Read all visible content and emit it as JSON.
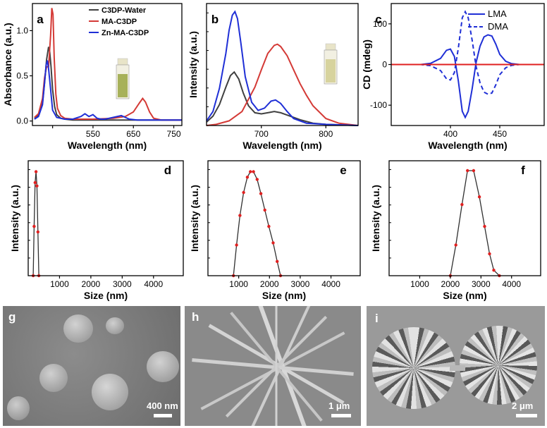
{
  "chart_data": [
    {
      "panel": "a",
      "type": "line",
      "xlabel": "Wavelength (nm)",
      "ylabel": "Absorbance (a.u.)",
      "xlim": [
        400,
        770
      ],
      "ylim": [
        -0.05,
        1.3
      ],
      "xticks": [
        450,
        550,
        650,
        750
      ],
      "xtick_labels": [
        "",
        "550",
        "650",
        "750"
      ],
      "yticks": [
        0.0,
        0.5,
        1.0
      ],
      "ytick_labels": [
        "0.0",
        "0.5",
        "1.0"
      ],
      "legend_position": "top-right",
      "series": [
        {
          "name": "C3DP-Water",
          "color": "#404040",
          "x": [
            405,
            415,
            425,
            430,
            435,
            440,
            443,
            446,
            450,
            455,
            460,
            470,
            480,
            500,
            550,
            600,
            650,
            700,
            770
          ],
          "y": [
            0.03,
            0.06,
            0.2,
            0.42,
            0.68,
            0.82,
            0.76,
            0.6,
            0.35,
            0.16,
            0.07,
            0.03,
            0.02,
            0.01,
            0.01,
            0.01,
            0.01,
            0.01,
            0.01
          ]
        },
        {
          "name": "MA-C3DP",
          "color": "#d43a36",
          "x": [
            405,
            415,
            425,
            430,
            435,
            440,
            445,
            448,
            451,
            454,
            458,
            462,
            470,
            480,
            500,
            550,
            600,
            630,
            650,
            665,
            673,
            680,
            690,
            700,
            720,
            770
          ],
          "y": [
            0.04,
            0.08,
            0.25,
            0.48,
            0.6,
            0.6,
            0.95,
            1.25,
            1.18,
            0.7,
            0.3,
            0.14,
            0.06,
            0.03,
            0.02,
            0.02,
            0.03,
            0.05,
            0.1,
            0.2,
            0.25,
            0.21,
            0.1,
            0.03,
            0.01,
            0.01
          ]
        },
        {
          "name": "Zn-MA-C3DP",
          "color": "#1f2fd6",
          "x": [
            405,
            415,
            425,
            430,
            434,
            437,
            440,
            445,
            450,
            460,
            480,
            500,
            520,
            530,
            540,
            550,
            560,
            570,
            580,
            590,
            600,
            620,
            630,
            640,
            660,
            700,
            770
          ],
          "y": [
            0.02,
            0.05,
            0.18,
            0.42,
            0.62,
            0.67,
            0.58,
            0.35,
            0.12,
            0.04,
            0.02,
            0.02,
            0.05,
            0.08,
            0.05,
            0.07,
            0.03,
            0.02,
            0.02,
            0.03,
            0.04,
            0.06,
            0.04,
            0.02,
            0.01,
            0.01,
            0.01
          ]
        }
      ]
    },
    {
      "panel": "b",
      "type": "line",
      "xlabel": "Wavelength (nm)",
      "ylabel": "Intensity (a.u.)",
      "xlim": [
        615,
        850
      ],
      "ylim": [
        0,
        1.05
      ],
      "xticks": [
        700,
        800
      ],
      "xtick_labels": [
        "700",
        "800"
      ],
      "series": [
        {
          "color": "#404040",
          "x": [
            615,
            625,
            635,
            645,
            652,
            658,
            665,
            672,
            680,
            690,
            700,
            710,
            720,
            730,
            740,
            750,
            760,
            780,
            800,
            850
          ],
          "y": [
            0.03,
            0.08,
            0.18,
            0.33,
            0.43,
            0.46,
            0.4,
            0.28,
            0.17,
            0.11,
            0.1,
            0.11,
            0.12,
            0.11,
            0.09,
            0.07,
            0.05,
            0.02,
            0.01,
            0.0
          ]
        },
        {
          "color": "#d43a36",
          "x": [
            615,
            630,
            650,
            670,
            690,
            700,
            710,
            720,
            725,
            730,
            740,
            750,
            760,
            770,
            780,
            800,
            820,
            850
          ],
          "y": [
            0.0,
            0.01,
            0.04,
            0.12,
            0.33,
            0.48,
            0.62,
            0.69,
            0.7,
            0.68,
            0.6,
            0.48,
            0.36,
            0.26,
            0.17,
            0.06,
            0.02,
            0.0
          ]
        },
        {
          "color": "#1f2fd6",
          "x": [
            615,
            625,
            635,
            645,
            650,
            655,
            659,
            663,
            668,
            675,
            685,
            695,
            705,
            715,
            722,
            730,
            740,
            750,
            770,
            800,
            850
          ],
          "y": [
            0.04,
            0.12,
            0.32,
            0.62,
            0.82,
            0.95,
            0.98,
            0.92,
            0.72,
            0.42,
            0.2,
            0.13,
            0.15,
            0.21,
            0.22,
            0.19,
            0.12,
            0.06,
            0.02,
            0.01,
            0.0
          ]
        }
      ]
    },
    {
      "panel": "c",
      "type": "line",
      "xlabel": "Wavelength (nm)",
      "ylabel": "CD (mdeg)",
      "xlim": [
        340,
        495
      ],
      "ylim": [
        -150,
        150
      ],
      "xticks": [
        400,
        450
      ],
      "xtick_labels": [
        "400",
        "450"
      ],
      "yticks": [
        -100,
        0,
        100
      ],
      "ytick_labels": [
        "-100",
        "0",
        "100"
      ],
      "legend_position": "top-right",
      "series": [
        {
          "name": "LMA",
          "color": "#1f2fd6",
          "dash": "solid",
          "x": [
            340,
            370,
            380,
            390,
            396,
            400,
            404,
            408,
            412,
            415,
            418,
            422,
            426,
            430,
            434,
            438,
            442,
            446,
            450,
            456,
            462,
            470,
            480,
            495
          ],
          "y": [
            0,
            0,
            3,
            15,
            35,
            38,
            20,
            -40,
            -115,
            -130,
            -115,
            -60,
            5,
            45,
            68,
            73,
            70,
            50,
            25,
            8,
            2,
            0,
            0,
            0
          ]
        },
        {
          "name": "DMA",
          "color": "#1f2fd6",
          "dash": "dashed",
          "x": [
            340,
            370,
            380,
            390,
            396,
            400,
            404,
            408,
            412,
            415,
            418,
            422,
            426,
            430,
            434,
            438,
            442,
            446,
            450,
            456,
            462,
            470,
            480,
            495
          ],
          "y": [
            0,
            0,
            -3,
            -15,
            -35,
            -38,
            -20,
            40,
            115,
            130,
            115,
            60,
            -5,
            -45,
            -68,
            -73,
            -70,
            -50,
            -25,
            -8,
            -2,
            0,
            0,
            0
          ]
        },
        {
          "color": "#e02020",
          "dash": "solid",
          "x": [
            340,
            495
          ],
          "y": [
            0,
            0
          ]
        }
      ]
    },
    {
      "panel": "d",
      "type": "line",
      "xlabel": "Size (nm)",
      "ylabel": "Intensity (a.u.)",
      "xlim": [
        0,
        4950
      ],
      "ylim": [
        0,
        1.05
      ],
      "xticks": [
        1000,
        2000,
        3000,
        4000
      ],
      "xtick_labels": [
        "1000",
        "2000",
        "3000",
        "4000"
      ],
      "series": [
        {
          "color": "#303030",
          "marker_color": "#e02020",
          "x": [
            160,
            190,
            220,
            250,
            280,
            310,
            340
          ],
          "y": [
            0.0,
            0.45,
            0.85,
            0.95,
            0.82,
            0.4,
            0.0
          ]
        }
      ]
    },
    {
      "panel": "e",
      "type": "line",
      "xlabel": "Size (nm)",
      "ylabel": "Intensity (a.u.)",
      "xlim": [
        0,
        4950
      ],
      "ylim": [
        0,
        1.05
      ],
      "xticks": [
        1000,
        2000,
        3000,
        4000
      ],
      "xtick_labels": [
        "1000",
        "2000",
        "3000",
        "4000"
      ],
      "series": [
        {
          "color": "#303030",
          "marker_color": "#e02020",
          "x": [
            830,
            930,
            1040,
            1160,
            1280,
            1380,
            1480,
            1600,
            1720,
            1850,
            1980,
            2120,
            2250,
            2360
          ],
          "y": [
            0.0,
            0.28,
            0.55,
            0.76,
            0.9,
            0.95,
            0.95,
            0.88,
            0.75,
            0.6,
            0.45,
            0.3,
            0.13,
            0.0
          ]
        }
      ]
    },
    {
      "panel": "f",
      "type": "line",
      "xlabel": "Size (nm)",
      "ylabel": "Intensity (a.u.)",
      "xlim": [
        0,
        4950
      ],
      "ylim": [
        0,
        1.05
      ],
      "xticks": [
        1000,
        2000,
        3000,
        4000
      ],
      "xtick_labels": [
        "1000",
        "2000",
        "3000",
        "4000"
      ],
      "series": [
        {
          "color": "#303030",
          "marker_color": "#e02020",
          "x": [
            2000,
            2180,
            2380,
            2560,
            2760,
            2950,
            3120,
            3280,
            3420,
            3600
          ],
          "y": [
            0.0,
            0.28,
            0.65,
            0.96,
            0.96,
            0.72,
            0.45,
            0.2,
            0.05,
            0.0
          ]
        }
      ]
    }
  ],
  "sem_panels": [
    {
      "label": "g",
      "scale_label": "400 nm"
    },
    {
      "label": "h",
      "scale_label": "1 μm"
    },
    {
      "label": "i",
      "scale_label": "2 μm"
    }
  ]
}
